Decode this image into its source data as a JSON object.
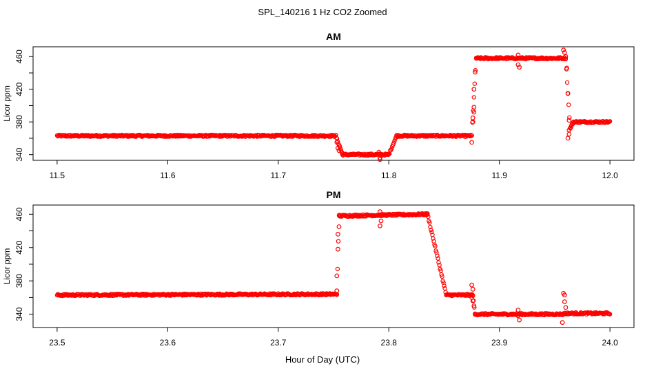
{
  "figure": {
    "title": "SPL_140216  1 Hz CO2 Zoomed",
    "xlabel": "Hour of Day (UTC)"
  },
  "colors": {
    "points": "#ff0000",
    "axes": "#000000"
  },
  "chart_data": [
    {
      "type": "scatter",
      "title": "AM",
      "ylabel": "Licor ppm",
      "xlim": [
        11.5,
        12.0
      ],
      "ylim": [
        333,
        472
      ],
      "xticks": [
        "11.5",
        "11.6",
        "11.7",
        "11.8",
        "11.9",
        "12.0"
      ],
      "yticks": [
        "340",
        "380",
        "420",
        "460"
      ],
      "segments": [
        {
          "from": 11.5,
          "to": 11.752,
          "start": 363,
          "end": 363
        },
        {
          "from": 11.752,
          "to": 11.758,
          "start": 363,
          "end": 341
        },
        {
          "from": 11.758,
          "to": 11.8,
          "start": 340,
          "end": 340
        },
        {
          "from": 11.8,
          "to": 11.807,
          "start": 340,
          "end": 363
        },
        {
          "from": 11.807,
          "to": 11.875,
          "start": 363,
          "end": 363
        },
        {
          "from": 11.875,
          "to": 11.879,
          "start": 363,
          "end": 458
        },
        {
          "from": 11.879,
          "to": 11.96,
          "start": 458,
          "end": 458
        },
        {
          "from": 11.96,
          "to": 11.964,
          "start": 458,
          "end": 372
        },
        {
          "from": 11.964,
          "to": 11.967,
          "start": 372,
          "end": 380
        },
        {
          "from": 11.967,
          "to": 12.0,
          "start": 380,
          "end": 380
        }
      ],
      "outliers": [
        {
          "x": 11.753,
          "y": 355
        },
        {
          "x": 11.754,
          "y": 348
        },
        {
          "x": 11.755,
          "y": 345
        },
        {
          "x": 11.792,
          "y": 336
        },
        {
          "x": 11.792,
          "y": 334
        },
        {
          "x": 11.791,
          "y": 343
        },
        {
          "x": 11.875,
          "y": 355
        },
        {
          "x": 11.876,
          "y": 380
        },
        {
          "x": 11.876,
          "y": 385
        },
        {
          "x": 11.877,
          "y": 392
        },
        {
          "x": 11.877,
          "y": 398
        },
        {
          "x": 11.877,
          "y": 420
        },
        {
          "x": 11.878,
          "y": 441
        },
        {
          "x": 11.917,
          "y": 462
        },
        {
          "x": 11.917,
          "y": 450
        },
        {
          "x": 11.918,
          "y": 447
        },
        {
          "x": 11.958,
          "y": 468
        },
        {
          "x": 11.959,
          "y": 465
        },
        {
          "x": 11.96,
          "y": 460
        },
        {
          "x": 11.961,
          "y": 446
        },
        {
          "x": 11.962,
          "y": 415
        },
        {
          "x": 11.963,
          "y": 382
        },
        {
          "x": 11.963,
          "y": 370
        },
        {
          "x": 11.963,
          "y": 365
        },
        {
          "x": 11.962,
          "y": 360
        },
        {
          "x": 11.965,
          "y": 375
        }
      ]
    },
    {
      "type": "scatter",
      "title": "PM",
      "ylabel": "Licor ppm",
      "xlim": [
        23.5,
        24.0
      ],
      "ylim": [
        324,
        471
      ],
      "xticks": [
        "23.5",
        "23.6",
        "23.7",
        "23.8",
        "23.9",
        "24.0"
      ],
      "yticks": [
        "340",
        "380",
        "420",
        "460"
      ],
      "segments": [
        {
          "from": 23.5,
          "to": 23.753,
          "start": 363,
          "end": 364
        },
        {
          "from": 23.753,
          "to": 23.755,
          "start": 364,
          "end": 458
        },
        {
          "from": 23.755,
          "to": 23.835,
          "start": 458,
          "end": 460
        },
        {
          "from": 23.835,
          "to": 23.852,
          "start": 460,
          "end": 363
        },
        {
          "from": 23.852,
          "to": 23.876,
          "start": 363,
          "end": 363
        },
        {
          "from": 23.876,
          "to": 23.878,
          "start": 363,
          "end": 340
        },
        {
          "from": 23.878,
          "to": 23.958,
          "start": 340,
          "end": 340
        },
        {
          "from": 23.958,
          "to": 24.0,
          "start": 341,
          "end": 341
        }
      ],
      "outliers": [
        {
          "x": 23.753,
          "y": 368
        },
        {
          "x": 23.753,
          "y": 386
        },
        {
          "x": 23.754,
          "y": 418
        },
        {
          "x": 23.754,
          "y": 436
        },
        {
          "x": 23.755,
          "y": 445
        },
        {
          "x": 23.792,
          "y": 463
        },
        {
          "x": 23.792,
          "y": 446
        },
        {
          "x": 23.793,
          "y": 452
        },
        {
          "x": 23.875,
          "y": 375
        },
        {
          "x": 23.876,
          "y": 370
        },
        {
          "x": 23.876,
          "y": 356
        },
        {
          "x": 23.877,
          "y": 350
        },
        {
          "x": 23.875,
          "y": 360
        },
        {
          "x": 23.917,
          "y": 345
        },
        {
          "x": 23.918,
          "y": 333
        },
        {
          "x": 23.917,
          "y": 338
        },
        {
          "x": 23.958,
          "y": 365
        },
        {
          "x": 23.959,
          "y": 363
        },
        {
          "x": 23.959,
          "y": 355
        },
        {
          "x": 23.96,
          "y": 348
        },
        {
          "x": 23.957,
          "y": 330
        }
      ]
    }
  ]
}
